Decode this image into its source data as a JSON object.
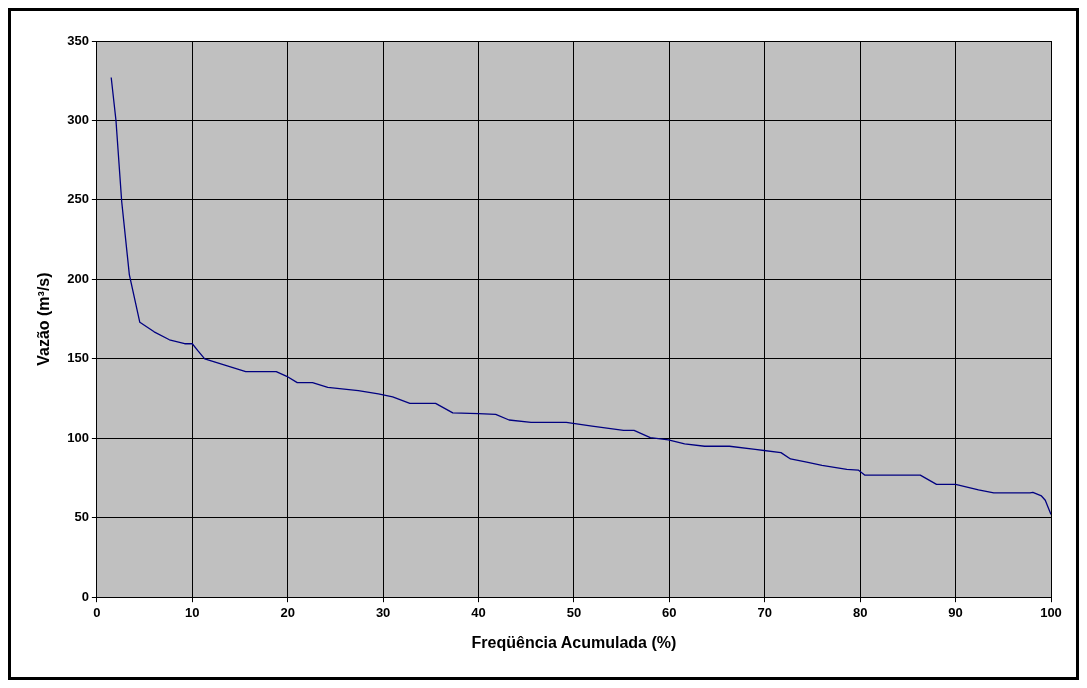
{
  "chart_data": {
    "type": "line",
    "xlabel": "Freqüência Acumulada (%)",
    "ylabel": "Vazão (m³/s)",
    "xlim": [
      0,
      100
    ],
    "xticks": [
      0,
      10,
      20,
      30,
      40,
      50,
      60,
      70,
      80,
      90,
      100
    ],
    "ylim": [
      0,
      350
    ],
    "yticks": [
      0,
      50,
      100,
      150,
      200,
      250,
      300,
      350
    ],
    "grid": true,
    "legend": false,
    "marker": "none",
    "line_style": "solid",
    "series": [
      {
        "color": "#000080",
        "x": [
          1.5,
          2.0,
          2.6,
          3.4,
          4.5,
          6,
          7.6,
          9.2,
          10,
          10.6,
          11.3,
          12.4,
          14,
          15.6,
          18.8,
          19.9,
          21,
          22.6,
          24.2,
          27.4,
          29.5,
          31,
          32.8,
          35.5,
          37.3,
          40,
          41.8,
          43.2,
          45.5,
          49.2,
          51.9,
          55.2,
          56.3,
          58,
          59.9,
          61.6,
          63.7,
          66.3,
          69,
          71.7,
          72.7,
          74.4,
          76,
          78.6,
          79.8,
          80.5,
          83.6,
          86.3,
          88,
          90,
          92.4,
          94,
          97.8,
          98.1,
          99,
          99.4,
          100
        ],
        "values": [
          327,
          300,
          249,
          203,
          173,
          167,
          162,
          159.5,
          159.5,
          155,
          150,
          148,
          145,
          142,
          142,
          139,
          135,
          135,
          132,
          130,
          128,
          126,
          122,
          122,
          116,
          115.5,
          115,
          111.5,
          110,
          110,
          107.6,
          105,
          105,
          100.4,
          99,
          96.5,
          95,
          95,
          93,
          91,
          87,
          85,
          83,
          80.5,
          80,
          76.8,
          76.8,
          76.8,
          71,
          71,
          67.5,
          65.6,
          65.6,
          66,
          63.7,
          61,
          52
        ]
      }
    ]
  }
}
